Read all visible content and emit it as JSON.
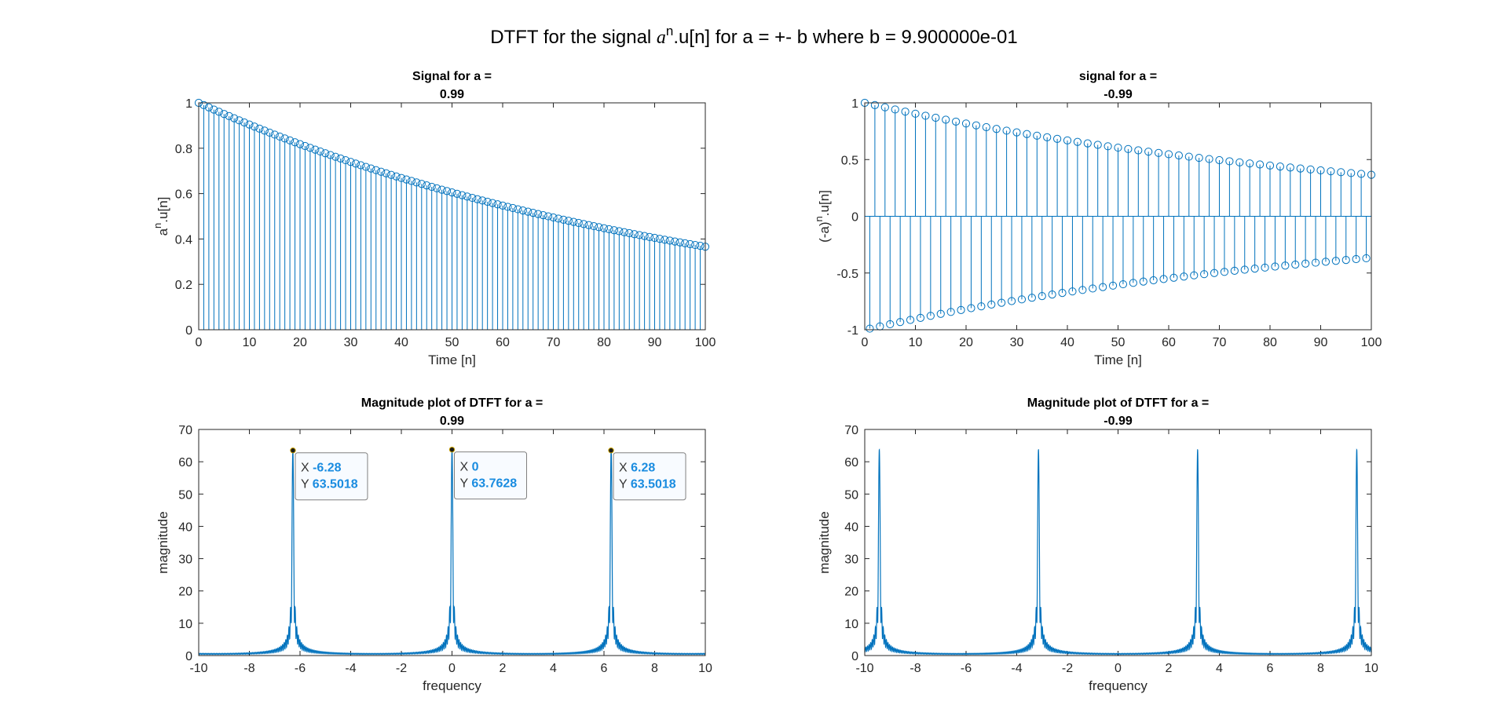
{
  "figure": {
    "suptitle_prefix": "DTFT for the signal ",
    "suptitle_base": "a",
    "suptitle_exp": "n",
    "suptitle_suffix": ".u[n] for a = +- b where b = 9.900000e-01"
  },
  "chart_data": [
    {
      "type": "stem",
      "title": "Signal for a =",
      "title_value": "0.99",
      "xlabel": "Time [n]",
      "ylabel_base": "a",
      "ylabel_exp": "n",
      "ylabel_suffix": ".u[n]",
      "xlim": [
        0,
        100
      ],
      "ylim": [
        0,
        1
      ],
      "xticks": [
        0,
        10,
        20,
        30,
        40,
        50,
        60,
        70,
        80,
        90,
        100
      ],
      "xtick_labels": [
        "0",
        "10",
        "20",
        "30",
        "40",
        "50",
        "60",
        "70",
        "80",
        "90",
        "100"
      ],
      "yticks": [
        0,
        0.2,
        0.4,
        0.6,
        0.8,
        1
      ],
      "ytick_labels": [
        "0",
        "0.2",
        "0.4",
        "0.6",
        "0.8",
        "1"
      ],
      "series": [
        {
          "a": 0.99,
          "n_range": [
            0,
            100
          ],
          "formula": "a^n",
          "color": "#0072BD"
        }
      ]
    },
    {
      "type": "stem",
      "title": "signal for a =",
      "title_value": "-0.99",
      "xlabel": "Time [n]",
      "ylabel_base": "(-a)",
      "ylabel_exp": "n",
      "ylabel_suffix": ".u[n]",
      "xlim": [
        0,
        100
      ],
      "ylim": [
        -1,
        1
      ],
      "xticks": [
        0,
        10,
        20,
        30,
        40,
        50,
        60,
        70,
        80,
        90,
        100
      ],
      "xtick_labels": [
        "0",
        "10",
        "20",
        "30",
        "40",
        "50",
        "60",
        "70",
        "80",
        "90",
        "100"
      ],
      "yticks": [
        -1,
        -0.5,
        0,
        0.5,
        1
      ],
      "ytick_labels": [
        "-1",
        "-0.5",
        "0",
        "0.5",
        "1"
      ],
      "series": [
        {
          "a": -0.99,
          "n_range": [
            0,
            100
          ],
          "formula": "a^n",
          "color": "#0072BD"
        }
      ]
    },
    {
      "type": "line",
      "title": "Magnitude plot of DTFT for a =",
      "title_value": "0.99",
      "xlabel": "frequency",
      "ylabel": "magnitude",
      "xlim": [
        -10,
        10
      ],
      "ylim": [
        0,
        70
      ],
      "xticks": [
        -10,
        -8,
        -6,
        -4,
        -2,
        0,
        2,
        4,
        6,
        8,
        10
      ],
      "xtick_labels": [
        "-10",
        "-8",
        "-6",
        "-4",
        "-2",
        "0",
        "2",
        "4",
        "6",
        "8",
        "10"
      ],
      "yticks": [
        0,
        10,
        20,
        30,
        40,
        50,
        60,
        70
      ],
      "ytick_labels": [
        "0",
        "10",
        "20",
        "30",
        "40",
        "50",
        "60",
        "70"
      ],
      "series": [
        {
          "a": 0.99,
          "N": 101,
          "formula": "|sum_{n=0}^{100} a^n e^{-jwn}|",
          "color": "#0072BD"
        }
      ],
      "datatips": [
        {
          "x": -6.28,
          "y": 63.5018,
          "x_label": "-6.28",
          "y_label": "63.5018"
        },
        {
          "x": 0,
          "y": 63.7628,
          "x_label": "0",
          "y_label": "63.7628"
        },
        {
          "x": 6.28,
          "y": 63.5018,
          "x_label": "6.28",
          "y_label": "63.5018"
        }
      ],
      "datatip_x_prefix": "X",
      "datatip_y_prefix": "Y"
    },
    {
      "type": "line",
      "title": "Magnitude plot of DTFT for a =",
      "title_value": "-0.99",
      "xlabel": "frequency",
      "ylabel": "magnitude",
      "xlim": [
        -10,
        10
      ],
      "ylim": [
        0,
        70
      ],
      "xticks": [
        -10,
        -8,
        -6,
        -4,
        -2,
        0,
        2,
        4,
        6,
        8,
        10
      ],
      "xtick_labels": [
        "-10",
        "-8",
        "-6",
        "-4",
        "-2",
        "0",
        "2",
        "4",
        "6",
        "8",
        "10"
      ],
      "yticks": [
        0,
        10,
        20,
        30,
        40,
        50,
        60,
        70
      ],
      "ytick_labels": [
        "0",
        "10",
        "20",
        "30",
        "40",
        "50",
        "60",
        "70"
      ],
      "series": [
        {
          "a": -0.99,
          "N": 101,
          "formula": "|sum_{n=0}^{100} a^n e^{-jwn}|",
          "color": "#0072BD"
        }
      ],
      "datatips": []
    }
  ]
}
